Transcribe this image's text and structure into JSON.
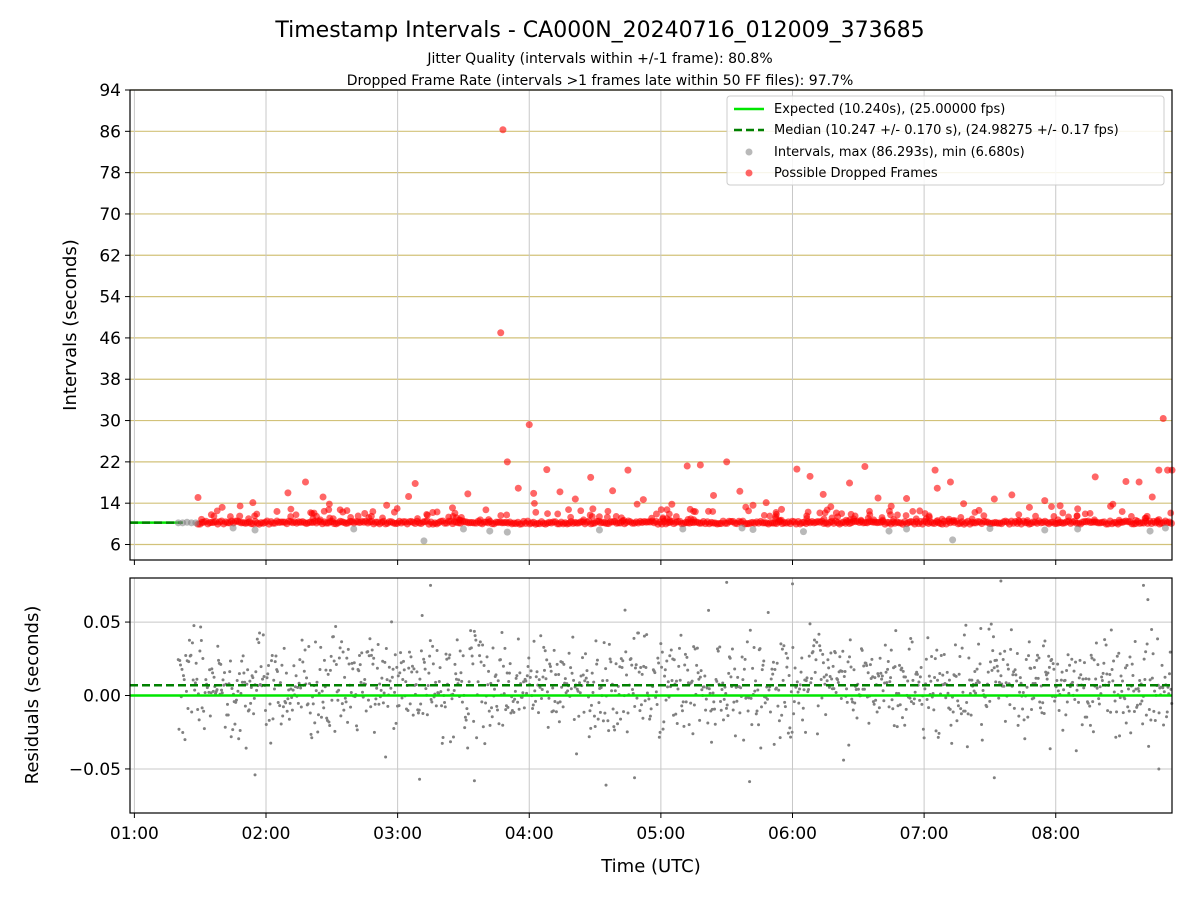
{
  "colors": {
    "expected": "#00e600",
    "median": "#008000",
    "intervals": "#808080",
    "dropped": "#ff0000",
    "hgrid_top": "#d2c27a",
    "grid": "#c8c8c8"
  },
  "chart_data": [
    {
      "type": "scatter",
      "title": "Timestamp Intervals - CA000N_20240716_012009_373685",
      "subtitle_lines": [
        "Jitter Quality (intervals within +/-1 frame): 80.8%",
        "Dropped Frame Rate (intervals >1 frames late within 50 FF files): 97.7%"
      ],
      "xlabel": "",
      "ylabel": "Intervals (seconds)",
      "xlim": [
        "00:58",
        "08:53"
      ],
      "ylim": [
        3,
        94
      ],
      "yticks": [
        6,
        14,
        22,
        30,
        38,
        46,
        54,
        62,
        70,
        78,
        86,
        94
      ],
      "xticks": [
        "01:00",
        "02:00",
        "03:00",
        "04:00",
        "05:00",
        "06:00",
        "07:00",
        "08:00"
      ],
      "grid": true,
      "legend_placement": "top-right",
      "legend": [
        "Expected (10.240s), (25.00000 fps)",
        "Median (10.247 +/- 0.170 s), (24.98275 +/- 0.17 fps)",
        "Intervals, max (86.293s), min (6.680s)",
        "Possible Dropped Frames"
      ],
      "expected_interval": 10.24,
      "median_interval": 10.247,
      "series": [
        {
          "name": "Intervals, max (86.293s), min (6.680s)",
          "points": [
            {
              "x": "01:20",
              "y": 10.2
            },
            {
              "x": "01:22",
              "y": 10.2
            },
            {
              "x": "01:24",
              "y": 10.3
            },
            {
              "x": "01:26",
              "y": 10.2
            },
            {
              "x": "01:28",
              "y": 10.2
            },
            {
              "x": "01:45",
              "y": 9.2
            },
            {
              "x": "01:55",
              "y": 8.8
            },
            {
              "x": "02:40",
              "y": 9.0
            },
            {
              "x": "03:12",
              "y": 6.7
            },
            {
              "x": "03:30",
              "y": 9.0
            },
            {
              "x": "03:42",
              "y": 8.6
            },
            {
              "x": "03:50",
              "y": 8.4
            },
            {
              "x": "04:32",
              "y": 8.8
            },
            {
              "x": "05:10",
              "y": 9.0
            },
            {
              "x": "05:37",
              "y": 9.2
            },
            {
              "x": "05:42",
              "y": 8.9
            },
            {
              "x": "06:05",
              "y": 8.5
            },
            {
              "x": "06:44",
              "y": 8.6
            },
            {
              "x": "06:52",
              "y": 9.0
            },
            {
              "x": "07:13",
              "y": 6.9
            },
            {
              "x": "07:30",
              "y": 9.1
            },
            {
              "x": "07:55",
              "y": 8.8
            },
            {
              "x": "08:10",
              "y": 9.0
            },
            {
              "x": "08:43",
              "y": 8.6
            },
            {
              "x": "08:50",
              "y": 9.2
            }
          ]
        },
        {
          "name": "Possible Dropped Frames",
          "points": [
            {
              "x": "01:29",
              "y": 15.1
            },
            {
              "x": "01:40",
              "y": 13.2
            },
            {
              "x": "01:48",
              "y": 11.5
            },
            {
              "x": "01:54",
              "y": 14.1
            },
            {
              "x": "02:05",
              "y": 12.4
            },
            {
              "x": "02:10",
              "y": 16.0
            },
            {
              "x": "02:18",
              "y": 18.1
            },
            {
              "x": "02:26",
              "y": 15.2
            },
            {
              "x": "02:35",
              "y": 12.3
            },
            {
              "x": "02:45",
              "y": 12.0
            },
            {
              "x": "02:55",
              "y": 13.6
            },
            {
              "x": "03:05",
              "y": 15.3
            },
            {
              "x": "03:08",
              "y": 17.8
            },
            {
              "x": "03:16",
              "y": 12.2
            },
            {
              "x": "03:25",
              "y": 13.1
            },
            {
              "x": "03:32",
              "y": 15.8
            },
            {
              "x": "03:48",
              "y": 86.3
            },
            {
              "x": "03:47",
              "y": 47.0
            },
            {
              "x": "03:50",
              "y": 22.0
            },
            {
              "x": "03:55",
              "y": 16.9
            },
            {
              "x": "04:02",
              "y": 15.9
            },
            {
              "x": "04:08",
              "y": 20.5
            },
            {
              "x": "04:14",
              "y": 16.2
            },
            {
              "x": "04:21",
              "y": 14.8
            },
            {
              "x": "04:29",
              "y": 12.9
            },
            {
              "x": "04:28",
              "y": 19.0
            },
            {
              "x": "04:38",
              "y": 16.4
            },
            {
              "x": "04:45",
              "y": 20.4
            },
            {
              "x": "04:52",
              "y": 14.7
            },
            {
              "x": "04:58",
              "y": 11.9
            },
            {
              "x": "05:05",
              "y": 13.8
            },
            {
              "x": "05:12",
              "y": 21.2
            },
            {
              "x": "05:18",
              "y": 21.4
            },
            {
              "x": "05:24",
              "y": 15.5
            },
            {
              "x": "05:30",
              "y": 22.0
            },
            {
              "x": "05:36",
              "y": 16.3
            },
            {
              "x": "05:42",
              "y": 13.6
            },
            {
              "x": "05:48",
              "y": 14.1
            },
            {
              "x": "05:55",
              "y": 12.8
            },
            {
              "x": "06:02",
              "y": 20.6
            },
            {
              "x": "06:08",
              "y": 19.2
            },
            {
              "x": "06:14",
              "y": 15.7
            },
            {
              "x": "06:20",
              "y": 12.1
            },
            {
              "x": "06:26",
              "y": 17.9
            },
            {
              "x": "06:33",
              "y": 21.1
            },
            {
              "x": "06:39",
              "y": 15.0
            },
            {
              "x": "06:45",
              "y": 13.4
            },
            {
              "x": "06:52",
              "y": 14.9
            },
            {
              "x": "06:58",
              "y": 12.5
            },
            {
              "x": "07:05",
              "y": 20.4
            },
            {
              "x": "07:06",
              "y": 16.9
            },
            {
              "x": "07:12",
              "y": 18.1
            },
            {
              "x": "07:18",
              "y": 13.9
            },
            {
              "x": "07:25",
              "y": 12.6
            },
            {
              "x": "07:32",
              "y": 14.8
            },
            {
              "x": "07:40",
              "y": 15.6
            },
            {
              "x": "07:48",
              "y": 13.2
            },
            {
              "x": "07:55",
              "y": 14.5
            },
            {
              "x": "08:02",
              "y": 13.5
            },
            {
              "x": "08:10",
              "y": 12.9
            },
            {
              "x": "08:18",
              "y": 19.1
            },
            {
              "x": "08:25",
              "y": 13.4
            },
            {
              "x": "08:32",
              "y": 18.2
            },
            {
              "x": "08:38",
              "y": 18.1
            },
            {
              "x": "08:44",
              "y": 15.2
            },
            {
              "x": "08:47",
              "y": 20.4
            },
            {
              "x": "08:49",
              "y": 30.4
            },
            {
              "x": "08:51",
              "y": 20.4
            },
            {
              "x": "08:53",
              "y": 20.4
            },
            {
              "x": "04:00",
              "y": 29.2
            }
          ]
        }
      ]
    },
    {
      "type": "scatter",
      "title": "",
      "xlabel": "Time (UTC)",
      "ylabel": "Residuals (seconds)",
      "xlim": [
        "00:58",
        "08:53"
      ],
      "ylim": [
        -0.08,
        0.08
      ],
      "yticks": [
        -0.05,
        0.0,
        0.05
      ],
      "ytick_labels": [
        "−0.05",
        "0.00",
        "0.05"
      ],
      "xticks": [
        "01:00",
        "02:00",
        "03:00",
        "04:00",
        "05:00",
        "06:00",
        "07:00",
        "08:00"
      ],
      "grid": true,
      "expected_residual": 0.0,
      "median_residual": 0.007,
      "residual_std": 0.017,
      "points_start": "01:20",
      "points_end": "08:53",
      "sample_extremes": [
        {
          "x": "03:15",
          "y": 0.075
        },
        {
          "x": "03:10",
          "y": -0.057
        },
        {
          "x": "03:35",
          "y": -0.058
        },
        {
          "x": "04:35",
          "y": -0.061
        },
        {
          "x": "04:48",
          "y": -0.056
        },
        {
          "x": "05:30",
          "y": 0.077
        },
        {
          "x": "06:00",
          "y": 0.076
        },
        {
          "x": "07:35",
          "y": 0.078
        },
        {
          "x": "07:32",
          "y": -0.056
        },
        {
          "x": "08:40",
          "y": 0.075
        },
        {
          "x": "08:47",
          "y": -0.05
        },
        {
          "x": "01:55",
          "y": -0.054
        }
      ]
    }
  ]
}
